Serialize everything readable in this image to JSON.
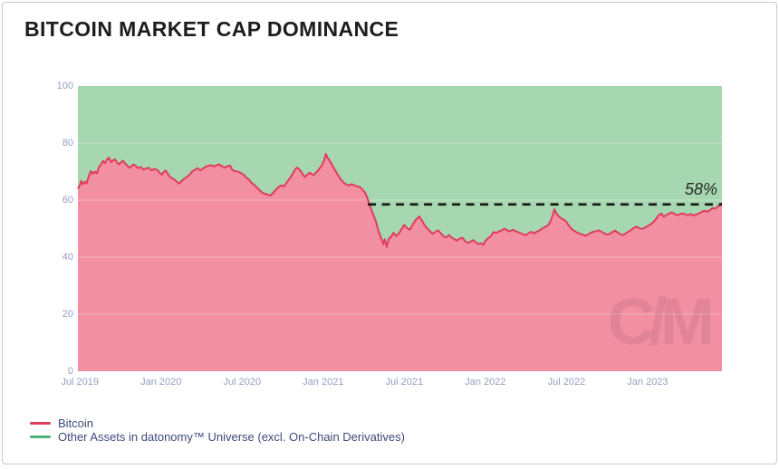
{
  "card": {
    "title": "BITCOIN MARKET CAP DOMINANCE"
  },
  "watermark_text": "C/M",
  "colors": {
    "card_border": "#c8cadb",
    "title_text": "#1d1d1f",
    "axis_label": "#949dc1",
    "legend_text": "#3e4a7a",
    "bitcoin_line": "#e13b5d",
    "bitcoin_fill": "#f28fa2",
    "other_assets_line": "#4cb372",
    "other_assets_fill": "#a7d7b0",
    "annotation_line": "#1b1b1b",
    "gridline": "rgba(255,255,255,0.32)"
  },
  "legend": {
    "items": [
      {
        "label": "Bitcoin",
        "color": "#e13b5d"
      },
      {
        "label": "Other Assets in datonomy™ Universe (excl. On-Chain Derivatives)",
        "color": "#4cb372"
      }
    ]
  },
  "chart_data": {
    "type": "area",
    "stacked_to": 100,
    "title": "BITCOIN MARKET CAP DOMINANCE",
    "xlabel": "",
    "ylabel": "",
    "ylim": [
      0,
      100
    ],
    "y_ticks": [
      0,
      20,
      40,
      60,
      80,
      100
    ],
    "x_unit": "months since Jul 2019",
    "x_domain": [
      -0.15,
      47.5
    ],
    "x_ticks": [
      {
        "m": 0,
        "label": "Jul 2019"
      },
      {
        "m": 6,
        "label": "Jan 2020"
      },
      {
        "m": 12,
        "label": "Jul 2020"
      },
      {
        "m": 18,
        "label": "Jan 2021"
      },
      {
        "m": 24,
        "label": "Jul 2021"
      },
      {
        "m": 30,
        "label": "Jan 2022"
      },
      {
        "m": 36,
        "label": "Jul 2022"
      },
      {
        "m": 42,
        "label": "Jan 2023"
      }
    ],
    "grid": "faint horizontal lines at 20/40/60/80",
    "legend_position": "bottom-left",
    "annotation": {
      "label": "58%",
      "value": 58.5,
      "start_m": 21.3,
      "style": "black dashed horizontal line"
    },
    "series": [
      {
        "name": "Bitcoin",
        "color": "#e13b5d",
        "fill": "#f28fa2",
        "points": [
          [
            -0.15,
            64.0
          ],
          [
            0.0,
            65.2
          ],
          [
            0.1,
            66.8
          ],
          [
            0.2,
            65.6
          ],
          [
            0.35,
            66.4
          ],
          [
            0.5,
            65.9
          ],
          [
            0.65,
            68.3
          ],
          [
            0.8,
            70.2
          ],
          [
            0.95,
            69.2
          ],
          [
            1.1,
            70.0
          ],
          [
            1.25,
            69.4
          ],
          [
            1.4,
            71.5
          ],
          [
            1.55,
            72.4
          ],
          [
            1.7,
            73.7
          ],
          [
            1.85,
            73.0
          ],
          [
            2.0,
            74.3
          ],
          [
            2.15,
            74.9
          ],
          [
            2.3,
            73.3
          ],
          [
            2.45,
            73.9
          ],
          [
            2.6,
            74.3
          ],
          [
            2.75,
            73.1
          ],
          [
            2.9,
            72.5
          ],
          [
            3.05,
            73.3
          ],
          [
            3.2,
            73.8
          ],
          [
            3.35,
            72.8
          ],
          [
            3.5,
            72.1
          ],
          [
            3.65,
            71.3
          ],
          [
            3.8,
            71.8
          ],
          [
            3.95,
            72.5
          ],
          [
            4.1,
            72.1
          ],
          [
            4.3,
            71.2
          ],
          [
            4.5,
            71.6
          ],
          [
            4.7,
            70.7
          ],
          [
            4.9,
            71.1
          ],
          [
            5.1,
            71.3
          ],
          [
            5.3,
            70.4
          ],
          [
            5.5,
            70.9
          ],
          [
            5.7,
            70.6
          ],
          [
            5.9,
            69.6
          ],
          [
            6.05,
            68.9
          ],
          [
            6.2,
            69.9
          ],
          [
            6.35,
            70.4
          ],
          [
            6.5,
            69.2
          ],
          [
            6.65,
            68.2
          ],
          [
            6.8,
            67.7
          ],
          [
            7.0,
            67.1
          ],
          [
            7.2,
            66.3
          ],
          [
            7.35,
            65.8
          ],
          [
            7.5,
            66.6
          ],
          [
            7.7,
            67.4
          ],
          [
            7.9,
            68.1
          ],
          [
            8.1,
            68.8
          ],
          [
            8.3,
            70.0
          ],
          [
            8.5,
            70.6
          ],
          [
            8.7,
            71.2
          ],
          [
            8.9,
            70.4
          ],
          [
            9.1,
            71.0
          ],
          [
            9.3,
            71.7
          ],
          [
            9.5,
            72.0
          ],
          [
            9.7,
            72.3
          ],
          [
            9.9,
            71.8
          ],
          [
            10.1,
            72.2
          ],
          [
            10.3,
            72.5
          ],
          [
            10.5,
            71.9
          ],
          [
            10.7,
            71.4
          ],
          [
            10.9,
            71.9
          ],
          [
            11.1,
            72.1
          ],
          [
            11.3,
            70.5
          ],
          [
            11.5,
            70.1
          ],
          [
            11.7,
            70.0
          ],
          [
            11.9,
            69.5
          ],
          [
            12.1,
            69.0
          ],
          [
            12.3,
            67.9
          ],
          [
            12.5,
            67.2
          ],
          [
            12.7,
            66.1
          ],
          [
            12.9,
            65.3
          ],
          [
            13.1,
            64.4
          ],
          [
            13.3,
            63.4
          ],
          [
            13.5,
            62.6
          ],
          [
            13.7,
            62.2
          ],
          [
            13.9,
            61.9
          ],
          [
            14.1,
            61.6
          ],
          [
            14.3,
            62.6
          ],
          [
            14.5,
            63.7
          ],
          [
            14.7,
            64.6
          ],
          [
            14.9,
            65.2
          ],
          [
            15.1,
            64.8
          ],
          [
            15.3,
            66.2
          ],
          [
            15.5,
            67.4
          ],
          [
            15.7,
            68.9
          ],
          [
            15.9,
            70.6
          ],
          [
            16.05,
            71.4
          ],
          [
            16.2,
            70.9
          ],
          [
            16.35,
            70.1
          ],
          [
            16.5,
            69.0
          ],
          [
            16.65,
            68.1
          ],
          [
            16.8,
            68.9
          ],
          [
            17.0,
            69.6
          ],
          [
            17.15,
            69.1
          ],
          [
            17.3,
            68.8
          ],
          [
            17.45,
            69.5
          ],
          [
            17.6,
            70.3
          ],
          [
            17.75,
            71.2
          ],
          [
            17.9,
            72.2
          ],
          [
            18.05,
            73.8
          ],
          [
            18.2,
            76.2
          ],
          [
            18.3,
            75.0
          ],
          [
            18.45,
            74.1
          ],
          [
            18.6,
            72.8
          ],
          [
            18.75,
            71.6
          ],
          [
            18.9,
            70.3
          ],
          [
            19.1,
            68.7
          ],
          [
            19.3,
            67.3
          ],
          [
            19.5,
            66.2
          ],
          [
            19.7,
            65.5
          ],
          [
            19.9,
            65.1
          ],
          [
            20.1,
            65.6
          ],
          [
            20.3,
            65.2
          ],
          [
            20.5,
            64.8
          ],
          [
            20.7,
            64.6
          ],
          [
            20.9,
            63.7
          ],
          [
            21.1,
            62.6
          ],
          [
            21.3,
            60.2
          ],
          [
            21.6,
            56.2
          ],
          [
            21.9,
            52.5
          ],
          [
            22.1,
            49.0
          ],
          [
            22.3,
            46.5
          ],
          [
            22.45,
            44.5
          ],
          [
            22.55,
            46.3
          ],
          [
            22.7,
            43.6
          ],
          [
            22.85,
            46.5
          ],
          [
            23.0,
            47.0
          ],
          [
            23.2,
            48.5
          ],
          [
            23.4,
            47.4
          ],
          [
            23.6,
            48.3
          ],
          [
            23.8,
            49.9
          ],
          [
            24.0,
            51.3
          ],
          [
            24.2,
            50.2
          ],
          [
            24.4,
            49.6
          ],
          [
            24.6,
            51.2
          ],
          [
            24.8,
            52.8
          ],
          [
            25.0,
            53.8
          ],
          [
            25.1,
            54.3
          ],
          [
            25.3,
            52.9
          ],
          [
            25.5,
            51.2
          ],
          [
            25.7,
            50.0
          ],
          [
            25.9,
            49.1
          ],
          [
            26.1,
            48.2
          ],
          [
            26.3,
            48.9
          ],
          [
            26.5,
            49.4
          ],
          [
            26.7,
            48.4
          ],
          [
            26.9,
            47.3
          ],
          [
            27.1,
            46.9
          ],
          [
            27.3,
            47.7
          ],
          [
            27.5,
            46.9
          ],
          [
            27.7,
            46.3
          ],
          [
            27.9,
            45.8
          ],
          [
            28.1,
            46.5
          ],
          [
            28.3,
            46.8
          ],
          [
            28.5,
            45.6
          ],
          [
            28.7,
            45.0
          ],
          [
            28.9,
            45.4
          ],
          [
            29.1,
            46.0
          ],
          [
            29.3,
            45.1
          ],
          [
            29.5,
            44.6
          ],
          [
            29.7,
            44.9
          ],
          [
            29.85,
            44.3
          ],
          [
            30.0,
            45.7
          ],
          [
            30.2,
            46.6
          ],
          [
            30.4,
            47.3
          ],
          [
            30.6,
            48.8
          ],
          [
            30.8,
            48.5
          ],
          [
            31.0,
            49.0
          ],
          [
            31.2,
            49.4
          ],
          [
            31.4,
            49.9
          ],
          [
            31.6,
            49.5
          ],
          [
            31.8,
            49.0
          ],
          [
            32.0,
            49.6
          ],
          [
            32.2,
            49.2
          ],
          [
            32.4,
            48.8
          ],
          [
            32.6,
            48.4
          ],
          [
            32.8,
            48.0
          ],
          [
            33.0,
            47.7
          ],
          [
            33.2,
            48.4
          ],
          [
            33.4,
            48.9
          ],
          [
            33.6,
            48.3
          ],
          [
            33.8,
            48.9
          ],
          [
            34.0,
            49.4
          ],
          [
            34.2,
            50.0
          ],
          [
            34.4,
            50.5
          ],
          [
            34.6,
            51.0
          ],
          [
            34.8,
            52.4
          ],
          [
            35.0,
            55.0
          ],
          [
            35.1,
            56.8
          ],
          [
            35.25,
            55.4
          ],
          [
            35.4,
            54.4
          ],
          [
            35.55,
            53.8
          ],
          [
            35.7,
            53.3
          ],
          [
            35.85,
            53.0
          ],
          [
            36.0,
            52.3
          ],
          [
            36.2,
            50.9
          ],
          [
            36.4,
            49.8
          ],
          [
            36.6,
            49.1
          ],
          [
            36.8,
            48.6
          ],
          [
            37.0,
            48.2
          ],
          [
            37.2,
            47.9
          ],
          [
            37.4,
            47.5
          ],
          [
            37.6,
            47.9
          ],
          [
            37.8,
            48.6
          ],
          [
            38.0,
            48.9
          ],
          [
            38.2,
            49.1
          ],
          [
            38.4,
            49.4
          ],
          [
            38.6,
            48.9
          ],
          [
            38.8,
            48.3
          ],
          [
            39.0,
            47.9
          ],
          [
            39.2,
            48.2
          ],
          [
            39.4,
            48.8
          ],
          [
            39.6,
            49.3
          ],
          [
            39.8,
            48.6
          ],
          [
            40.0,
            48.0
          ],
          [
            40.2,
            47.7
          ],
          [
            40.4,
            48.4
          ],
          [
            40.6,
            49.0
          ],
          [
            40.8,
            49.6
          ],
          [
            41.0,
            50.3
          ],
          [
            41.2,
            50.7
          ],
          [
            41.4,
            50.1
          ],
          [
            41.6,
            49.9
          ],
          [
            41.8,
            50.3
          ],
          [
            42.0,
            50.9
          ],
          [
            42.2,
            51.4
          ],
          [
            42.4,
            52.2
          ],
          [
            42.6,
            53.2
          ],
          [
            42.8,
            54.6
          ],
          [
            43.0,
            55.3
          ],
          [
            43.2,
            54.2
          ],
          [
            43.4,
            54.8
          ],
          [
            43.6,
            55.3
          ],
          [
            43.8,
            55.7
          ],
          [
            44.0,
            55.1
          ],
          [
            44.2,
            54.7
          ],
          [
            44.4,
            55.1
          ],
          [
            44.6,
            55.3
          ],
          [
            44.8,
            55.0
          ],
          [
            45.0,
            54.7
          ],
          [
            45.2,
            55.1
          ],
          [
            45.4,
            54.6
          ],
          [
            45.6,
            54.9
          ],
          [
            45.8,
            55.4
          ],
          [
            46.0,
            55.8
          ],
          [
            46.2,
            56.3
          ],
          [
            46.4,
            55.9
          ],
          [
            46.6,
            56.4
          ],
          [
            46.8,
            57.2
          ],
          [
            47.0,
            57.0
          ],
          [
            47.2,
            57.7
          ],
          [
            47.35,
            58.2
          ],
          [
            47.5,
            59.0
          ]
        ]
      },
      {
        "name": "Other Assets in datonomy™ Universe (excl. On-Chain Derivatives)",
        "color": "#4cb372",
        "fill": "#a7d7b0",
        "complement_of": "Bitcoin"
      }
    ]
  }
}
